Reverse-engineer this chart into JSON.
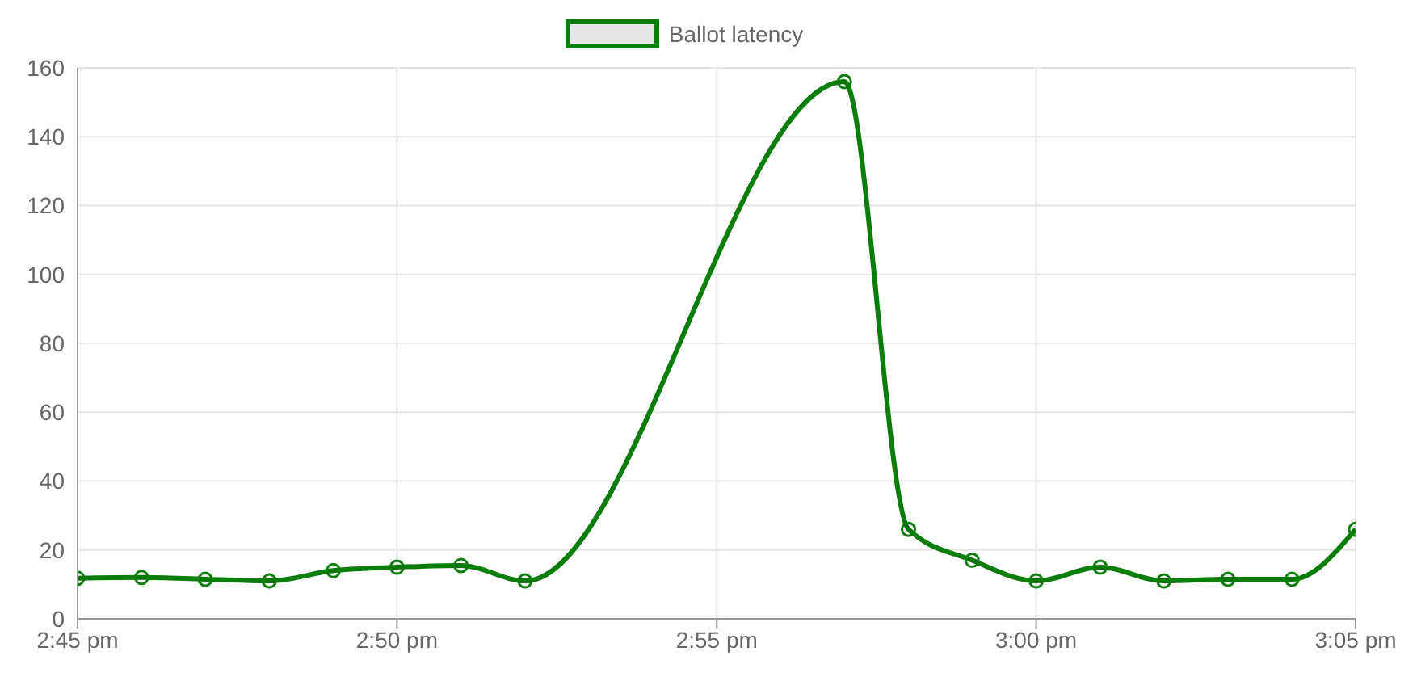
{
  "chart_data": {
    "type": "line",
    "x": [
      14.75,
      14.7667,
      14.7833,
      14.8,
      14.8167,
      14.8333,
      14.85,
      14.8667,
      14.95,
      14.9667,
      14.9833,
      15.0,
      15.0167,
      15.0333,
      15.05,
      15.0667,
      15.0833
    ],
    "series": [
      {
        "name": "Ballot latency",
        "color": "#0a7d0a",
        "values": [
          11.8,
          12,
          11.5,
          11,
          14,
          15,
          15.5,
          11,
          156,
          26,
          17,
          11,
          15,
          11,
          11.5,
          11.5,
          26
        ]
      }
    ],
    "xlim": [
      14.75,
      15.0833
    ],
    "xticks": [
      {
        "value": 14.75,
        "label": "2:45 pm"
      },
      {
        "value": 14.8333,
        "label": "2:50 pm"
      },
      {
        "value": 14.9167,
        "label": "2:55 pm"
      },
      {
        "value": 15.0,
        "label": "3:00 pm"
      },
      {
        "value": 15.0833,
        "label": "3:05 pm"
      }
    ],
    "ylim": [
      0,
      160
    ],
    "yticks": [
      0,
      20,
      40,
      60,
      80,
      100,
      120,
      140,
      160
    ],
    "grid": true,
    "legend": "top",
    "marker": "circle",
    "line_style": "solid"
  }
}
